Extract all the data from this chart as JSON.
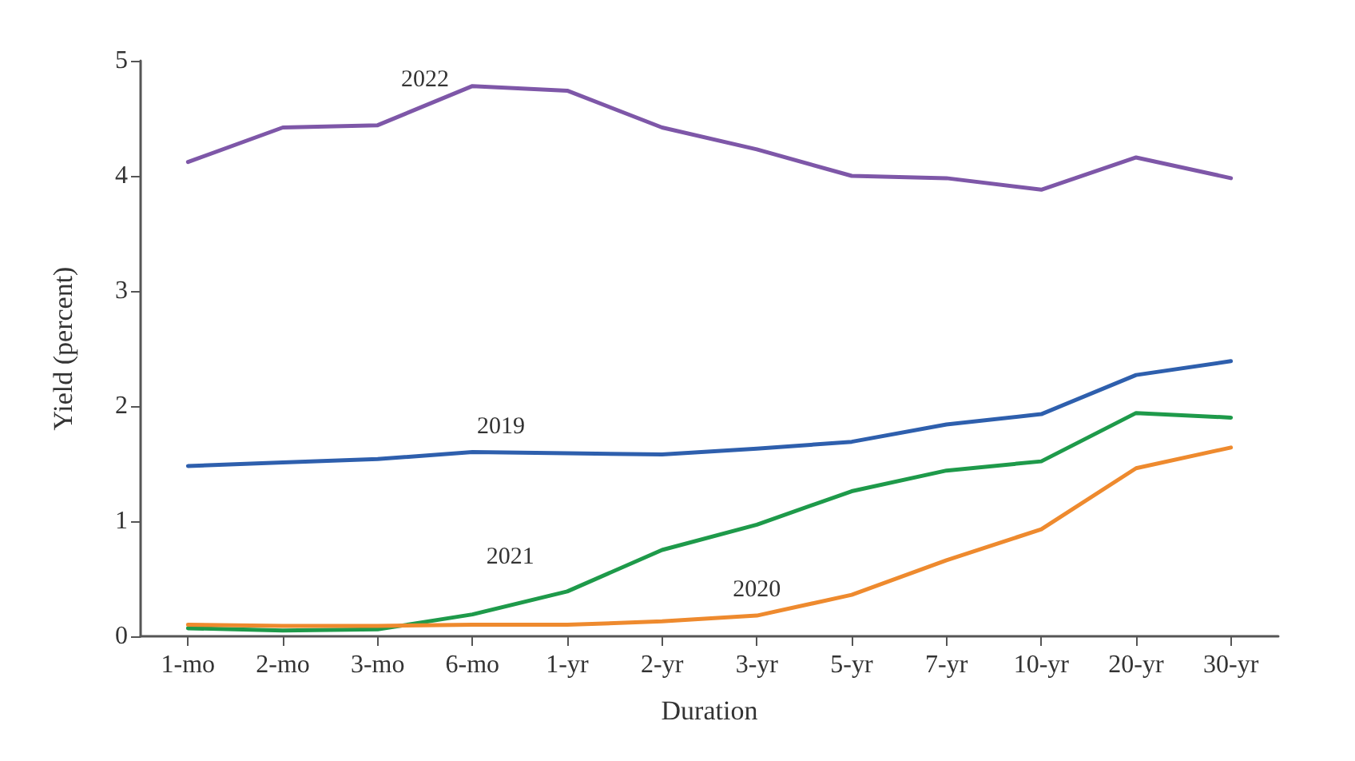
{
  "chart_data": {
    "type": "line",
    "xlabel": "Duration",
    "ylabel": "Yield (percent)",
    "categories": [
      "1-mo",
      "2-mo",
      "3-mo",
      "6-mo",
      "1-yr",
      "2-yr",
      "3-yr",
      "5-yr",
      "7-yr",
      "10-yr",
      "20-yr",
      "30-yr"
    ],
    "series": [
      {
        "name": "2022",
        "color": "#7e57a8",
        "values": [
          4.12,
          4.42,
          4.44,
          4.78,
          4.74,
          4.42,
          4.23,
          4.0,
          3.98,
          3.88,
          4.16,
          3.98
        ]
      },
      {
        "name": "2019",
        "color": "#2e5fad",
        "values": [
          1.48,
          1.51,
          1.54,
          1.6,
          1.59,
          1.58,
          1.63,
          1.69,
          1.84,
          1.93,
          2.27,
          2.39
        ]
      },
      {
        "name": "2021",
        "color": "#1e9a4a",
        "values": [
          0.07,
          0.05,
          0.06,
          0.19,
          0.39,
          0.75,
          0.97,
          1.26,
          1.44,
          1.52,
          1.94,
          1.9
        ]
      },
      {
        "name": "2020",
        "color": "#ee8a2e",
        "values": [
          0.1,
          0.09,
          0.09,
          0.1,
          0.1,
          0.13,
          0.18,
          0.36,
          0.66,
          0.93,
          1.46,
          1.64
        ]
      }
    ],
    "ylim": [
      0,
      5
    ],
    "yticks": [
      0,
      1,
      2,
      3,
      4,
      5
    ],
    "grid": false,
    "marker": "none",
    "line_style": "solid"
  }
}
